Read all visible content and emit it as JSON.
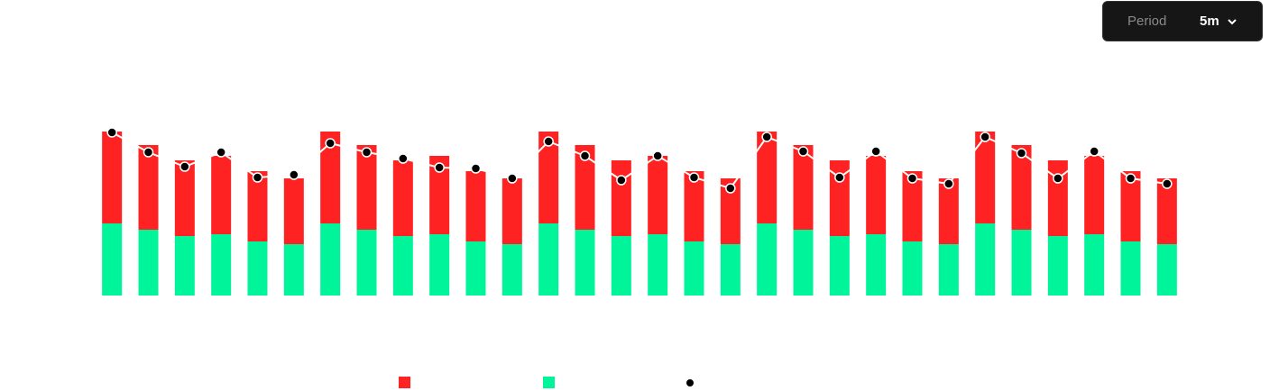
{
  "controls": {
    "period_label": "Period",
    "period_value": "5m"
  },
  "chart_data": {
    "type": "bar",
    "stacked": true,
    "ylim": [
      0,
      200
    ],
    "series": [
      {
        "color": "#00f59b",
        "values": [
          80,
          73,
          66,
          68,
          60,
          57,
          80,
          73,
          66,
          68,
          60,
          57,
          80,
          73,
          66,
          68,
          60,
          57,
          80,
          73,
          66,
          68,
          60,
          57,
          80,
          73,
          66,
          68,
          60,
          57
        ]
      },
      {
        "color": "#ff2222",
        "values": [
          102,
          94,
          84,
          87,
          78,
          73,
          102,
          94,
          84,
          87,
          78,
          73,
          102,
          94,
          84,
          87,
          78,
          73,
          102,
          94,
          84,
          87,
          78,
          73,
          102,
          94,
          84,
          87,
          78,
          73
        ]
      },
      {
        "type": "line",
        "color": "#000000",
        "line_color": "#ffffff",
        "values": [
          181,
          159,
          143,
          159,
          131,
          134,
          169,
          159,
          152,
          142,
          141,
          130,
          171,
          155,
          128,
          155,
          131,
          119,
          176,
          160,
          131,
          160,
          130,
          124,
          176,
          158,
          130,
          160,
          130,
          124
        ]
      }
    ]
  }
}
